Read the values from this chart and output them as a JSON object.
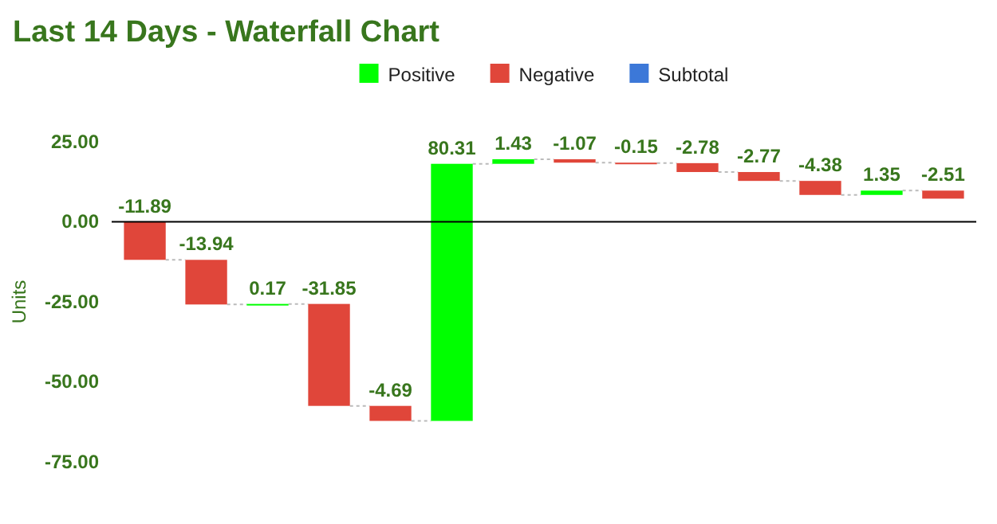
{
  "chart_data": {
    "type": "bar",
    "title": "Last 14 Days - Waterfall Chart",
    "ylabel": "Units",
    "categories": [
      null,
      null,
      null,
      null,
      null,
      null,
      null,
      null,
      null,
      null,
      null,
      null,
      null,
      null
    ],
    "series": [
      {
        "name": "Positive",
        "color": "#00ff00",
        "values": [
          null,
          null,
          0.17,
          null,
          null,
          80.31,
          1.43,
          null,
          null,
          null,
          null,
          null,
          1.35,
          null
        ],
        "base": [
          null,
          null,
          -25.83,
          null,
          null,
          -62.2,
          18.11,
          null,
          null,
          null,
          null,
          null,
          8.39,
          null
        ],
        "value_labels": [
          null,
          null,
          "0.17",
          null,
          null,
          "80.31",
          "1.43",
          null,
          null,
          null,
          null,
          null,
          "1.35",
          null
        ]
      },
      {
        "name": "Negative",
        "color": "#e0463a",
        "values": [
          -11.89,
          -13.94,
          null,
          -31.85,
          -4.69,
          null,
          null,
          -1.07,
          -0.15,
          -2.78,
          -2.77,
          -4.38,
          null,
          -2.51
        ],
        "base": [
          0,
          -11.89,
          null,
          -25.66,
          -57.51,
          null,
          null,
          19.54,
          18.47,
          18.32,
          15.54,
          12.77,
          null,
          9.74
        ],
        "value_labels": [
          "-11.89",
          "-13.94",
          null,
          "-31.85",
          "-4.69",
          null,
          null,
          "-1.07",
          "-0.15",
          "-2.78",
          "-2.77",
          "-4.38",
          null,
          "-2.51"
        ]
      },
      {
        "name": "Subtotal",
        "color": "#3c78d8",
        "values": [
          null,
          null,
          null,
          null,
          null,
          null,
          null,
          null,
          null,
          null,
          null,
          null,
          null,
          null
        ]
      }
    ],
    "ylim": [
      -75,
      25
    ],
    "yticks": [
      {
        "value": 25,
        "label": "25.00"
      },
      {
        "value": 0,
        "label": "0.00"
      },
      {
        "value": -25,
        "label": "-25.00"
      },
      {
        "value": -50,
        "label": "-50.00"
      },
      {
        "value": -75,
        "label": "-75.00"
      }
    ],
    "ref_lines": [
      {
        "axis": "y",
        "value": 0,
        "color": "#000000"
      }
    ],
    "legend": "top"
  }
}
